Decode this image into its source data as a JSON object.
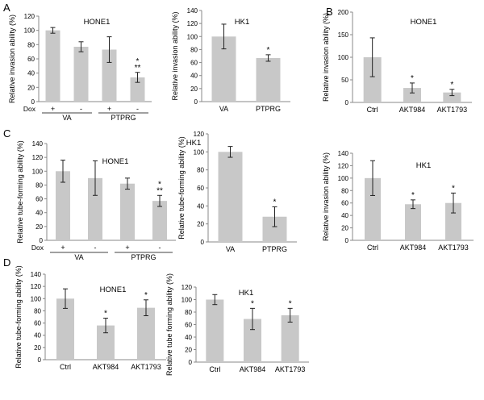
{
  "panel_letters": [
    "A",
    "B",
    "C",
    "D"
  ],
  "chart_data": [
    {
      "id": "A1",
      "type": "bar",
      "title": "HONE1",
      "ylabel": "Relative invasion ability (%)",
      "ylim": [
        0,
        120
      ],
      "ytick_step": 20,
      "categories": [
        "+",
        "-",
        "+",
        "-"
      ],
      "category_row_label": "Dox",
      "groups": [
        {
          "label": "VA",
          "bars": [
            0,
            1
          ]
        },
        {
          "label": "PTPRG",
          "bars": [
            2,
            3
          ]
        }
      ],
      "values": [
        100,
        77,
        73,
        34
      ],
      "errors": [
        4,
        7,
        18,
        7
      ],
      "annotations": [
        "",
        "",
        "",
        "*\n**"
      ]
    },
    {
      "id": "A2",
      "type": "bar",
      "title": "HK1",
      "ylabel": "Relative invasion ability (%)",
      "ylim": [
        0,
        140
      ],
      "ytick_step": 20,
      "categories": [
        "VA",
        "PTPRG"
      ],
      "values": [
        100,
        67
      ],
      "errors": [
        19,
        5
      ],
      "annotations": [
        "",
        "*"
      ]
    },
    {
      "id": "B1",
      "type": "bar",
      "title": "HONE1",
      "ylabel": "Relative invasion ability (%)",
      "ylim": [
        0,
        200
      ],
      "ytick_step": 50,
      "categories": [
        "Ctrl",
        "AKT984",
        "AKT1793"
      ],
      "values": [
        100,
        32,
        22
      ],
      "errors": [
        43,
        11,
        7
      ],
      "annotations": [
        "",
        "*",
        "*"
      ]
    },
    {
      "id": "C1",
      "type": "bar",
      "title": "HONE1",
      "ylabel": "Relative tube-forming ability (%)",
      "ylim": [
        0,
        140
      ],
      "ytick_step": 20,
      "categories": [
        "+",
        "-",
        "+",
        "-"
      ],
      "category_row_label": "Dox",
      "groups": [
        {
          "label": "VA",
          "bars": [
            0,
            1
          ]
        },
        {
          "label": "PTPRG",
          "bars": [
            2,
            3
          ]
        }
      ],
      "values": [
        100,
        90,
        82,
        57
      ],
      "errors": [
        16,
        25,
        8,
        8
      ],
      "annotations": [
        "",
        "",
        "",
        "*\n**"
      ]
    },
    {
      "id": "C2",
      "type": "bar",
      "title": "HK1",
      "ylabel": "Relative tube-forming ability (%)",
      "ylim": [
        0,
        120
      ],
      "ytick_step": 20,
      "categories": [
        "VA",
        "PTPRG"
      ],
      "values": [
        100,
        28
      ],
      "errors": [
        6,
        11
      ],
      "annotations": [
        "",
        "*"
      ]
    },
    {
      "id": "C3",
      "type": "bar",
      "title": "HK1",
      "ylabel": "Relative invasion ability (%)",
      "ylim": [
        0,
        140
      ],
      "ytick_step": 20,
      "categories": [
        "Ctrl",
        "AKT984",
        "AKT1793"
      ],
      "values": [
        100,
        58,
        60
      ],
      "errors": [
        28,
        7,
        16
      ],
      "annotations": [
        "",
        "*",
        "*"
      ]
    },
    {
      "id": "D1",
      "type": "bar",
      "title": "HONE1",
      "ylabel": "Relative tube-forming ability (%)",
      "ylim": [
        0,
        140
      ],
      "ytick_step": 20,
      "categories": [
        "Ctrl",
        "AKT984",
        "AKT1793"
      ],
      "values": [
        100,
        56,
        85
      ],
      "errors": [
        16,
        12,
        13
      ],
      "annotations": [
        "",
        "*",
        "*"
      ]
    },
    {
      "id": "D2",
      "type": "bar",
      "title": "HK1",
      "ylabel": "Relative tube forming ability (%)",
      "ylim": [
        0,
        120
      ],
      "ytick_step": 20,
      "categories": [
        "Ctrl",
        "AKT984",
        "AKT1793"
      ],
      "values": [
        100,
        69,
        75
      ],
      "errors": [
        8,
        17,
        11
      ],
      "annotations": [
        "",
        "*",
        "*"
      ]
    }
  ]
}
